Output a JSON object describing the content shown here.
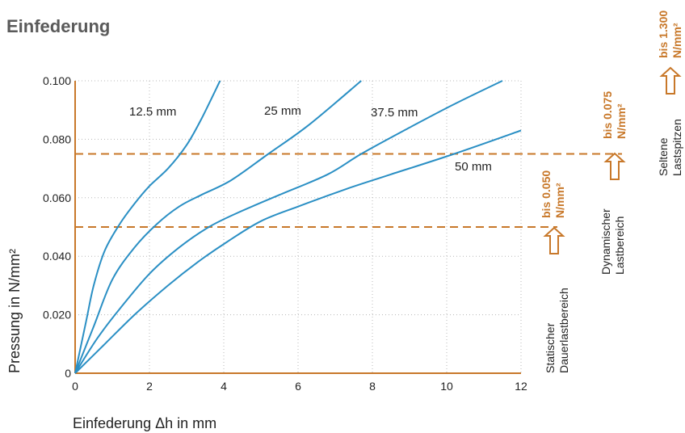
{
  "colors": {
    "curve": "#2a8fc4",
    "accent": "#c8782a",
    "grid": "#b8b8b8",
    "axis": "#c8782a"
  },
  "chart_data": {
    "type": "line",
    "title": "Einfederung",
    "xlabel": "Einfederung Δh in mm",
    "ylabel": "Pressung in N/mm²",
    "xlim": [
      0,
      12
    ],
    "ylim": [
      0,
      0.1
    ],
    "x_ticks": [
      "0",
      "2",
      "4",
      "6",
      "8",
      "10",
      "12"
    ],
    "y_ticks": [
      "0",
      "0.020",
      "0.040",
      "0.060",
      "0.080",
      "0.100"
    ],
    "grid": true,
    "series": [
      {
        "name": "12.5 mm",
        "points": [
          [
            0,
            0
          ],
          [
            0.3,
            0.018
          ],
          [
            0.5,
            0.03
          ],
          [
            0.8,
            0.042
          ],
          [
            1.2,
            0.051
          ],
          [
            1.6,
            0.058
          ],
          [
            2.0,
            0.064
          ],
          [
            2.5,
            0.07
          ],
          [
            3.0,
            0.078
          ],
          [
            3.4,
            0.087
          ],
          [
            3.9,
            0.1
          ]
        ]
      },
      {
        "name": "25 mm",
        "points": [
          [
            0,
            0
          ],
          [
            0.5,
            0.016
          ],
          [
            1.0,
            0.032
          ],
          [
            1.6,
            0.043
          ],
          [
            2.2,
            0.051
          ],
          [
            2.8,
            0.057
          ],
          [
            3.4,
            0.061
          ],
          [
            4.2,
            0.066
          ],
          [
            5.2,
            0.075
          ],
          [
            6.3,
            0.085
          ],
          [
            7.7,
            0.1
          ]
        ]
      },
      {
        "name": "37.5 mm",
        "points": [
          [
            0,
            0
          ],
          [
            0.6,
            0.012
          ],
          [
            1.2,
            0.022
          ],
          [
            2.0,
            0.034
          ],
          [
            2.8,
            0.043
          ],
          [
            3.6,
            0.05
          ],
          [
            4.4,
            0.055
          ],
          [
            5.5,
            0.061
          ],
          [
            6.8,
            0.068
          ],
          [
            7.7,
            0.075
          ],
          [
            9.0,
            0.084
          ],
          [
            10.2,
            0.092
          ],
          [
            11.5,
            0.1
          ]
        ]
      },
      {
        "name": "50 mm",
        "points": [
          [
            0,
            0
          ],
          [
            0.8,
            0.01
          ],
          [
            1.6,
            0.02
          ],
          [
            2.5,
            0.03
          ],
          [
            3.3,
            0.038
          ],
          [
            4.1,
            0.045
          ],
          [
            5.0,
            0.052
          ],
          [
            6.0,
            0.057
          ],
          [
            7.3,
            0.063
          ],
          [
            8.5,
            0.068
          ],
          [
            10.2,
            0.075
          ],
          [
            12.0,
            0.083
          ]
        ]
      }
    ],
    "reference_lines": [
      {
        "y": 0.05,
        "label_line1": "bis 0.050",
        "label_line2": "N/mm²",
        "desc_line1": "Statischer",
        "desc_line2": "Dauerlastbereich"
      },
      {
        "y": 0.075,
        "label_line1": "bis 0.075",
        "label_line2": "N/mm²",
        "desc_line1": "Dynamischer",
        "desc_line2": "Lastbereich"
      }
    ],
    "extra_range": {
      "label_line1": "bis 1.300",
      "label_line2": "N/mm²",
      "desc_line1": "Seltene",
      "desc_line2": "Lastspitzen"
    }
  }
}
